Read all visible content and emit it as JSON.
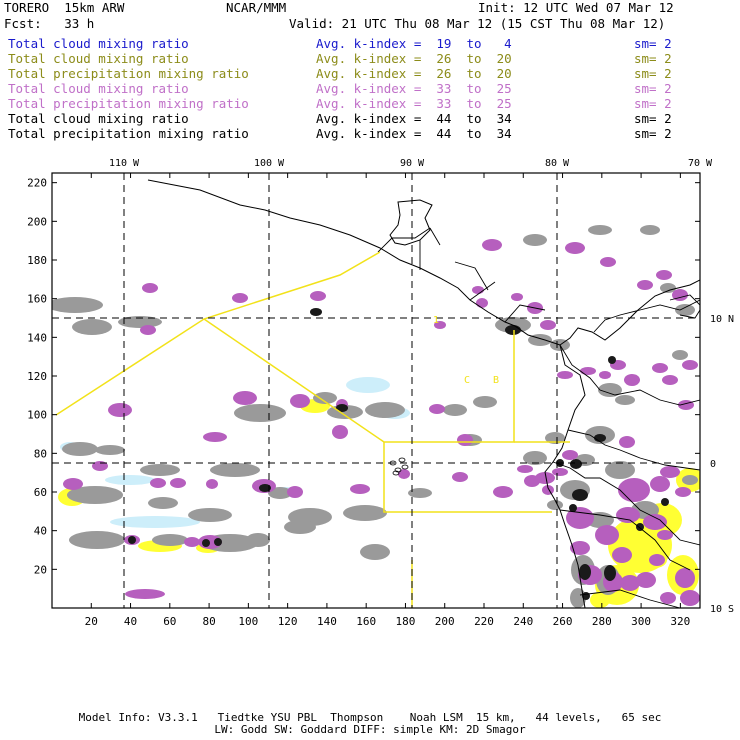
{
  "header": {
    "model": "TORERO  15km ARW",
    "org": "NCAR/MMM",
    "init": "Init: 12 UTC Wed 07 Mar 12",
    "fcst": "Fcst:   33 h",
    "valid": "Valid: 21 UTC Thu 08 Mar 12 (15 CST Thu 08 Mar 12)"
  },
  "legend": [
    {
      "name": "Total cloud mixing ratio",
      "kindex": "Avg. k-index =  19  to   4",
      "sm": "sm= 2",
      "color": "#1a1acc"
    },
    {
      "name": "Total cloud mixing ratio",
      "kindex": "Avg. k-index =  26  to  20",
      "sm": "sm= 2",
      "color": "#8c8c1a"
    },
    {
      "name": "Total precipitation mixing ratio",
      "kindex": "Avg. k-index =  26  to  20",
      "sm": "sm= 2",
      "color": "#8c8c1a"
    },
    {
      "name": "Total cloud mixing ratio",
      "kindex": "Avg. k-index =  33  to  25",
      "sm": "sm= 2",
      "color": "#c070c8"
    },
    {
      "name": "Total precipitation mixing ratio",
      "kindex": "Avg. k-index =  33  to  25",
      "sm": "sm= 2",
      "color": "#c070c8"
    },
    {
      "name": "Total cloud mixing ratio",
      "kindex": "Avg. k-index =  44  to  34",
      "sm": "sm= 2",
      "color": "#000000"
    },
    {
      "name": "Total precipitation mixing ratio",
      "kindex": "Avg. k-index =  44  to  34",
      "sm": "sm= 2",
      "color": "#000000"
    }
  ],
  "chart_data": {
    "type": "map",
    "projection": "grid index axes with lon/lat overlay",
    "x_ticks": [
      "20",
      "40",
      "60",
      "80",
      "100",
      "120",
      "140",
      "160",
      "180",
      "200",
      "220",
      "240",
      "260",
      "280",
      "300",
      "320"
    ],
    "y_ticks": [
      "20",
      "40",
      "60",
      "80",
      "100",
      "120",
      "140",
      "160",
      "180",
      "200",
      "220"
    ],
    "xlim": [
      0,
      330
    ],
    "ylim": [
      0,
      225
    ],
    "lon_labels": [
      "110 W",
      "100 W",
      "90 W",
      "80 W",
      "70 W"
    ],
    "lat_labels": [
      "10 N",
      "0",
      "10 S"
    ],
    "region_label_1": "1",
    "region_label_2": "C",
    "region_label_3": "B",
    "colors": {
      "gray": "#9a9a9a",
      "dark": "#1a1a1a",
      "purple": "#b65fbe",
      "yellow": "#ffff33",
      "cyan": "#cdeefa",
      "box": "#f2e21a"
    }
  },
  "footer": {
    "line1": "Model Info: V3.3.1   Tiedtke YSU PBL  Thompson    Noah LSM  15 km,   44 levels,   65 sec",
    "line2": "LW: Godd SW: Goddard DIFF: simple KM: 2D Smagor"
  }
}
